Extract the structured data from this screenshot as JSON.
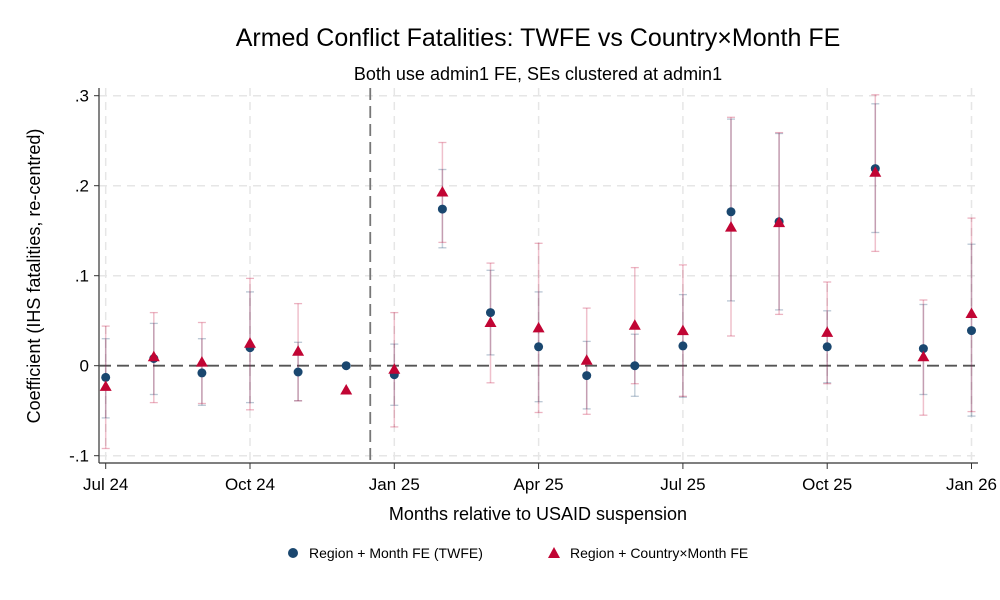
{
  "chart_data": {
    "type": "scatter",
    "title": "Armed Conflict Fatalities: TWFE vs Country×Month FE",
    "subtitle": "Both use admin1 FE, SEs clustered at admin1",
    "xlabel": "Months relative to USAID suspension",
    "ylabel": "Coefficient (IHS fatalities, re-centred)",
    "x_months": [
      "Jul 24",
      "Aug 24",
      "Sep 24",
      "Oct 24",
      "Nov 24",
      "Dec 24",
      "Jan 25",
      "Feb 25",
      "Mar 25",
      "Apr 25",
      "May 25",
      "Jun 25",
      "Jul 25",
      "Aug 25",
      "Sep 25",
      "Oct 25",
      "Nov 25",
      "Dec 25",
      "Jan 26"
    ],
    "x_tick_labels": [
      "Jul 24",
      "Oct 24",
      "Jan 25",
      "Apr 25",
      "Jul 25",
      "Oct 25",
      "Jan 26"
    ],
    "x_tick_index": [
      0,
      3,
      6,
      9,
      12,
      15,
      18
    ],
    "y_ticks": [
      -0.1,
      0,
      0.1,
      0.2,
      0.3
    ],
    "y_tick_labels": [
      "-.1",
      "0",
      ".1",
      ".2",
      ".3"
    ],
    "ylim": [
      -0.1,
      0.3
    ],
    "reference_line_y": 0,
    "event_line_between": [
      "Dec 24",
      "Jan 25"
    ],
    "grid": true,
    "legend_position": "bottom",
    "series": [
      {
        "name": "Region + Month FE (TWFE)",
        "marker": "circle",
        "color": "#1a476f",
        "values": [
          -0.013,
          0.008,
          -0.008,
          0.02,
          -0.007,
          0.0,
          -0.01,
          0.174,
          0.059,
          0.021,
          -0.011,
          0.0,
          0.022,
          0.171,
          0.16,
          0.021,
          0.219,
          0.019,
          0.039
        ],
        "ci_low": [
          -0.058,
          -0.032,
          -0.044,
          -0.041,
          -0.039,
          null,
          -0.044,
          0.131,
          0.012,
          -0.04,
          -0.048,
          -0.034,
          -0.035,
          0.072,
          0.062,
          -0.019,
          0.148,
          -0.032,
          -0.056
        ],
        "ci_high": [
          0.03,
          0.047,
          0.03,
          0.082,
          0.026,
          null,
          0.024,
          0.218,
          0.106,
          0.082,
          0.027,
          0.035,
          0.079,
          0.274,
          0.258,
          0.061,
          0.291,
          0.068,
          0.135
        ]
      },
      {
        "name": "Region + Country×Month FE",
        "marker": "triangle",
        "color": "#c10534",
        "values": [
          -0.023,
          0.01,
          0.004,
          0.025,
          0.016,
          -0.027,
          -0.004,
          0.193,
          0.048,
          0.042,
          0.006,
          0.045,
          0.039,
          0.154,
          0.159,
          0.037,
          0.215,
          0.01,
          0.058
        ],
        "ci_low": [
          -0.092,
          -0.041,
          -0.042,
          -0.049,
          -0.039,
          null,
          -0.068,
          0.137,
          -0.019,
          -0.052,
          -0.054,
          -0.02,
          -0.034,
          0.033,
          0.057,
          -0.02,
          0.127,
          -0.055,
          -0.051
        ],
        "ci_high": [
          0.044,
          0.059,
          0.048,
          0.097,
          0.069,
          null,
          0.059,
          0.248,
          0.114,
          0.136,
          0.064,
          0.109,
          0.112,
          0.276,
          0.259,
          0.093,
          0.301,
          0.073,
          0.164
        ]
      }
    ]
  }
}
